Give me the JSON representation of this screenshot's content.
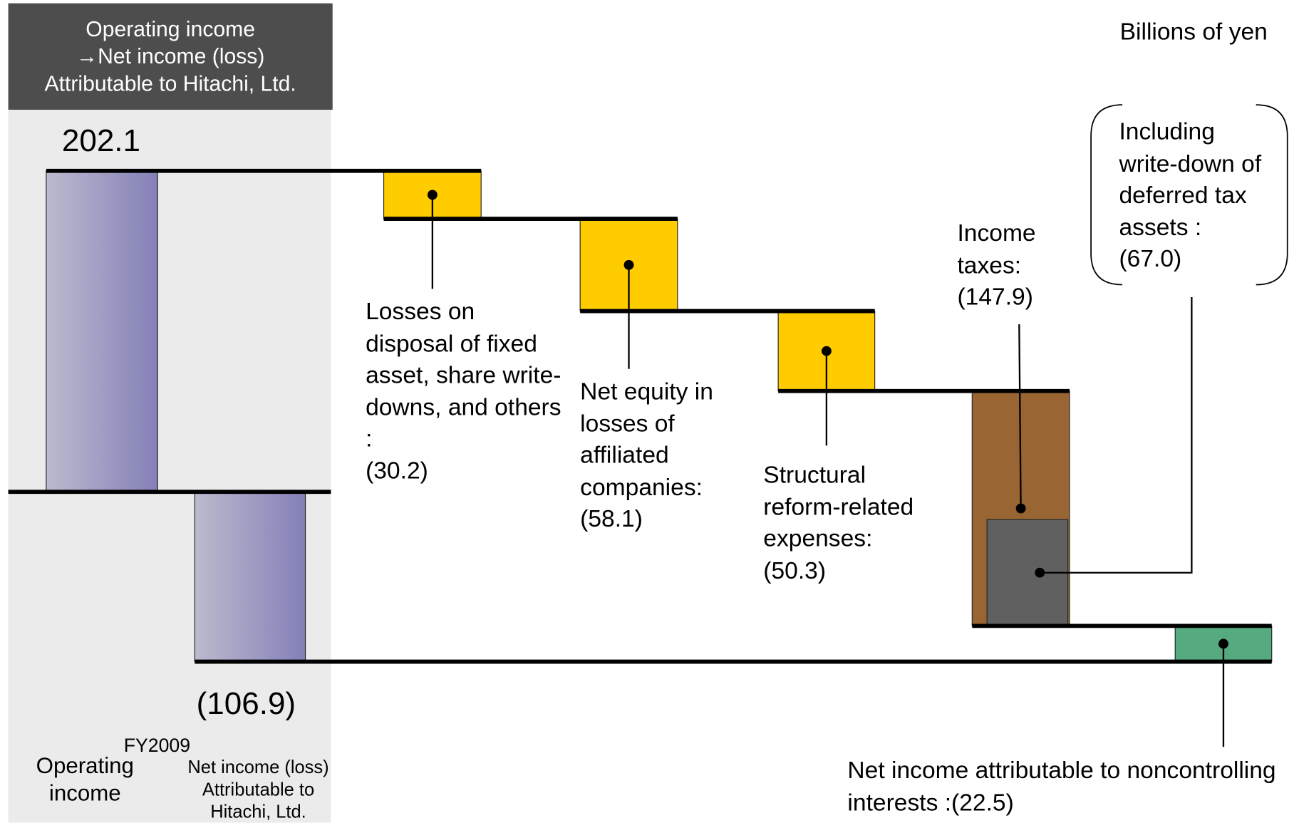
{
  "chart_data": {
    "type": "waterfall",
    "header": [
      "Operating income",
      "→Net income (loss)",
      "Attributable to Hitachi, Ltd."
    ],
    "unit_label": "Billions of yen",
    "period": "FY2009",
    "categories": [
      "Operating income",
      "Losses on disposal of fixed asset, share write-downs, and others :",
      "Net equity in losses of affiliated companies:",
      "Structural reform-related expenses:",
      "Income taxes:",
      "Net income attributable to noncontrolling interests :",
      "Net income (loss) Attributable to Hitachi, Ltd."
    ],
    "values": [
      202.1,
      -30.2,
      -58.1,
      -50.3,
      -147.9,
      -22.5,
      -106.9
    ],
    "value_labels": [
      "202.1",
      "(30.2)",
      "(58.1)",
      "(50.3)",
      "(147.9)",
      "(22.5)",
      "(106.9)"
    ],
    "kinds": [
      "total",
      "delta",
      "delta",
      "delta",
      "delta",
      "delta",
      "total"
    ],
    "colors": [
      "#8a86ba",
      "#ffcc00",
      "#ffcc00",
      "#ffcc00",
      "#996633",
      "#55aa80",
      "#8a86ba"
    ],
    "breakdown": {
      "of": 4,
      "label": "Including write-down of deferred tax assets :",
      "value": -67.0,
      "value_label": "(67.0)",
      "color": "#606060"
    }
  }
}
